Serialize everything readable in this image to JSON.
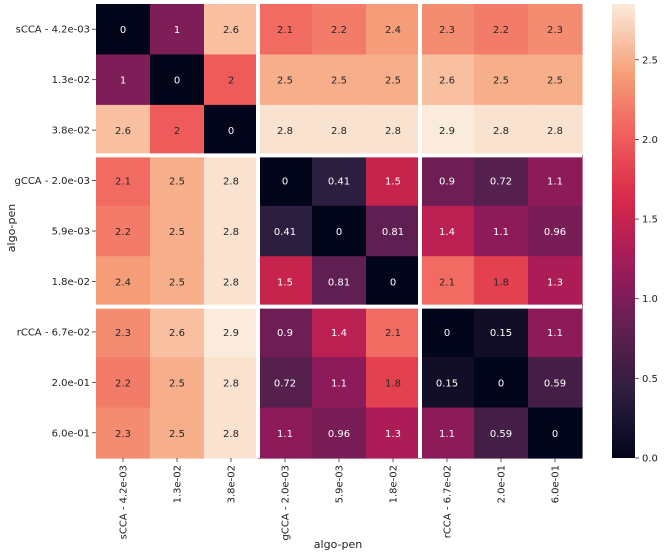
{
  "chart_data": {
    "type": "heatmap",
    "title": "",
    "xlabel": "algo-pen",
    "ylabel": "algo-pen",
    "labels": [
      "sCCA - 4.2e-03",
      "1.3e-02",
      "3.8e-02",
      "gCCA - 2.0e-03",
      "5.9e-03",
      "1.8e-02",
      "rCCA - 6.7e-02",
      "2.0e-01",
      "6.0e-01"
    ],
    "cell_labels": [
      [
        "0",
        "1",
        "2.6",
        "2.1",
        "2.2",
        "2.4",
        "2.3",
        "2.2",
        "2.3"
      ],
      [
        "1",
        "0",
        "2",
        "2.5",
        "2.5",
        "2.5",
        "2.6",
        "2.5",
        "2.5"
      ],
      [
        "2.6",
        "2",
        "0",
        "2.8",
        "2.8",
        "2.8",
        "2.9",
        "2.8",
        "2.8"
      ],
      [
        "2.1",
        "2.5",
        "2.8",
        "0",
        "0.41",
        "1.5",
        "0.9",
        "0.72",
        "1.1"
      ],
      [
        "2.2",
        "2.5",
        "2.8",
        "0.41",
        "0",
        "0.81",
        "1.4",
        "1.1",
        "0.96"
      ],
      [
        "2.4",
        "2.5",
        "2.8",
        "1.5",
        "0.81",
        "0",
        "2.1",
        "1.8",
        "1.3"
      ],
      [
        "2.3",
        "2.6",
        "2.9",
        "0.9",
        "1.4",
        "2.1",
        "0",
        "0.15",
        "1.1"
      ],
      [
        "2.2",
        "2.5",
        "2.8",
        "0.72",
        "1.1",
        "1.8",
        "0.15",
        "0",
        "0.59"
      ],
      [
        "2.3",
        "2.5",
        "2.8",
        "1.1",
        "0.96",
        "1.3",
        "1.1",
        "0.59",
        "0"
      ]
    ],
    "group_size": 3,
    "colorbar": {
      "min": 0,
      "max": 2.85,
      "ticks": [
        0,
        0.5,
        1,
        1.5,
        2,
        2.5
      ],
      "tick_labels": [
        "0.0",
        "0.5",
        "1.0",
        "1.5",
        "2.0",
        "2.5"
      ]
    },
    "colormap": "rocket",
    "colormap_stops": [
      "#03051a",
      "#2c1e3e",
      "#611f53",
      "#a11a5b",
      "#d92847",
      "#f1605d",
      "#f6a47c",
      "#faebdd"
    ]
  }
}
